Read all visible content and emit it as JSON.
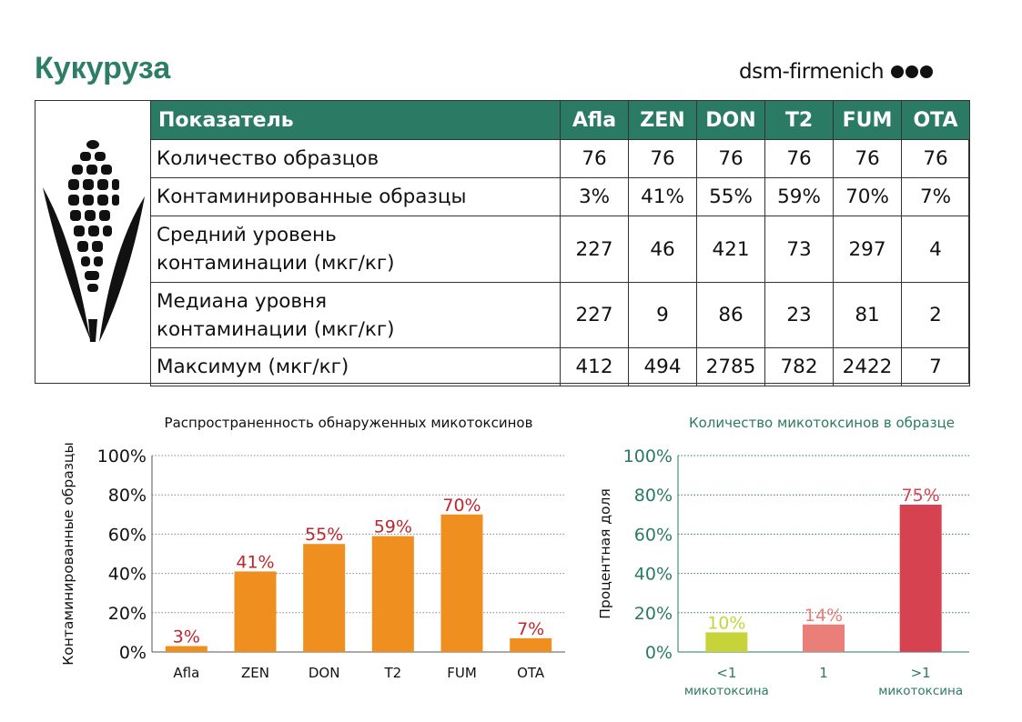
{
  "title": "Кукуруза",
  "brand": {
    "name": "dsm-firmenich",
    "logo": "three-dots-logo"
  },
  "table": {
    "header_label": "Показатель",
    "columns": [
      "Afla",
      "ZEN",
      "DON",
      "T2",
      "FUM",
      "OTA"
    ],
    "rows": [
      {
        "label": "Количество образцов",
        "values": [
          "76",
          "76",
          "76",
          "76",
          "76",
          "76"
        ]
      },
      {
        "label": "Контаминированные образцы",
        "values": [
          "3%",
          "41%",
          "55%",
          "59%",
          "70%",
          "7%"
        ]
      },
      {
        "label": "Средний уровень контаминации (мкг/кг)",
        "values": [
          "227",
          "46",
          "421",
          "73",
          "297",
          "4"
        ]
      },
      {
        "label": "Медиана уровня контаминации (мкг/кг)",
        "values": [
          "227",
          "9",
          "86",
          "23",
          "81",
          "2"
        ]
      },
      {
        "label": "Максимум (мкг/кг)",
        "values": [
          "412",
          "494",
          "2785",
          "782",
          "2422",
          "7"
        ]
      }
    ],
    "icon": "corn-icon"
  },
  "colors": {
    "accent": "#2b7a64",
    "title": "#2e7d67",
    "bar_orange": "#ee8f1f",
    "label_red": "#c0262d",
    "bar_green": "#c6d43a",
    "bar_pink": "#ea7e78",
    "bar_red": "#d6424f"
  },
  "chart_data": [
    {
      "type": "bar",
      "title": "Распространенность обнаруженных микотоксинов",
      "ylabel": "Контаминированные образцы",
      "xlabel": "",
      "ylim": [
        0,
        100
      ],
      "yticks": [
        "0%",
        "20%",
        "40%",
        "60%",
        "80%",
        "100%"
      ],
      "categories": [
        "Afla",
        "ZEN",
        "DON",
        "T2",
        "FUM",
        "OTA"
      ],
      "values": [
        3,
        41,
        55,
        59,
        70,
        7
      ],
      "data_labels": [
        "3%",
        "41%",
        "55%",
        "59%",
        "70%",
        "7%"
      ],
      "grid": true
    },
    {
      "type": "bar",
      "title": "Количество микотоксинов в образце",
      "ylabel": "Процентная доля",
      "xlabel": "",
      "ylim": [
        0,
        100
      ],
      "yticks": [
        "0%",
        "20%",
        "40%",
        "60%",
        "80%",
        "100%"
      ],
      "categories": [
        [
          "<1",
          "микотоксина"
        ],
        [
          "1",
          ""
        ],
        [
          ">1",
          "микотоксина"
        ]
      ],
      "values": [
        10,
        14,
        75
      ],
      "data_labels": [
        "10%",
        "14%",
        "75%"
      ],
      "grid": true
    }
  ]
}
